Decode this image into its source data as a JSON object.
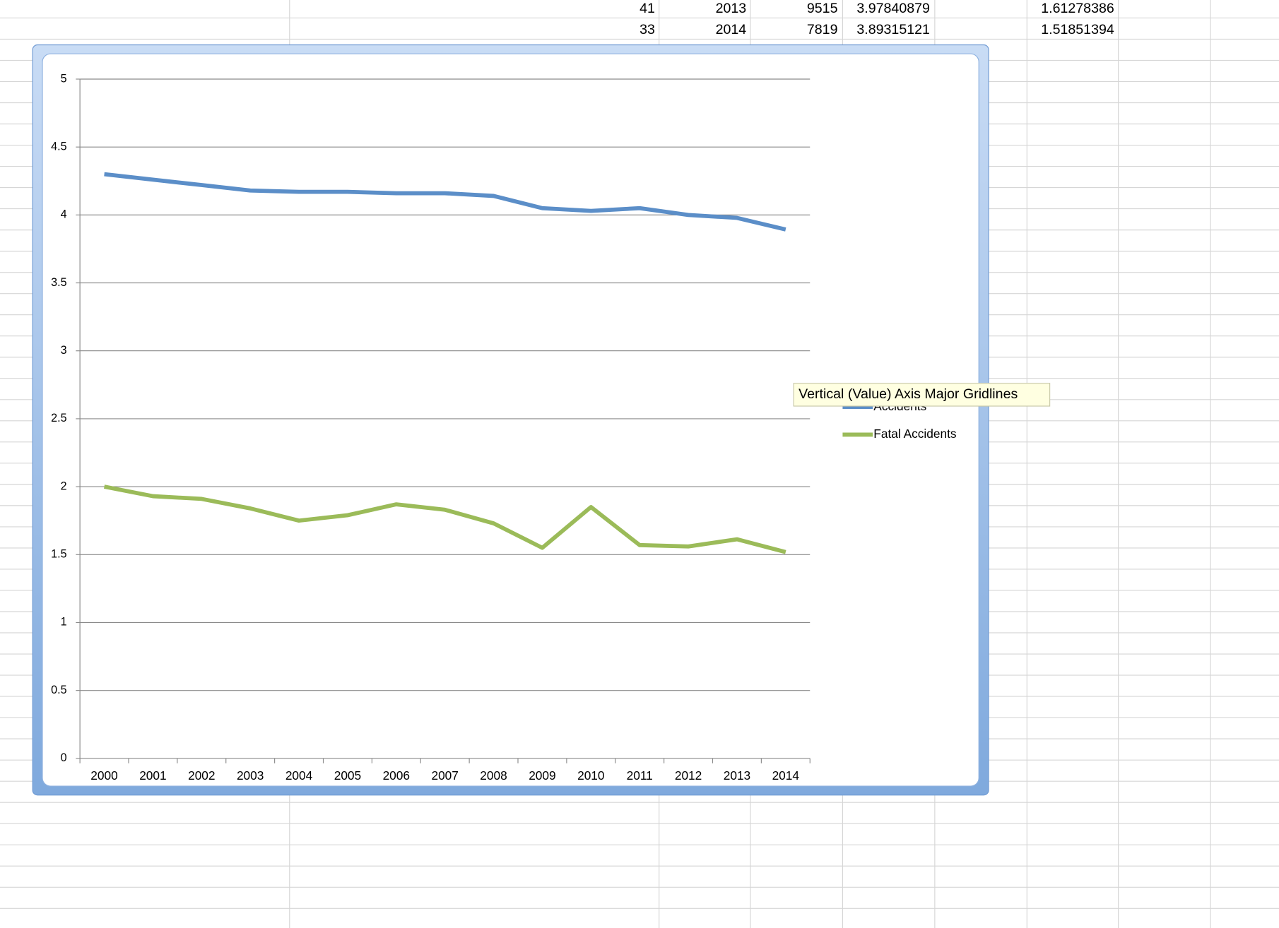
{
  "spreadsheet": {
    "rows": [
      [
        41,
        2013,
        9515,
        3.97840879,
        1.61278386
      ],
      [
        33,
        2014,
        7819,
        3.89315121,
        1.51851394
      ]
    ]
  },
  "tooltip": "Vertical (Value) Axis Major Gridlines",
  "chart_data": {
    "type": "line",
    "categories": [
      "2000",
      "2001",
      "2002",
      "2003",
      "2004",
      "2005",
      "2006",
      "2007",
      "2008",
      "2009",
      "2010",
      "2011",
      "2012",
      "2013",
      "2014"
    ],
    "series": [
      {
        "name": "Accidents",
        "color": "#5b8ec8",
        "values": [
          4.3,
          4.26,
          4.22,
          4.18,
          4.17,
          4.17,
          4.16,
          4.16,
          4.14,
          4.05,
          4.03,
          4.05,
          4.0,
          3.97840879,
          3.89315121
        ]
      },
      {
        "name": "Fatal Accidents",
        "color": "#9bbb59",
        "values": [
          2.0,
          1.93,
          1.91,
          1.84,
          1.75,
          1.79,
          1.87,
          1.83,
          1.73,
          1.55,
          1.85,
          1.57,
          1.56,
          1.61278386,
          1.51851394
        ]
      }
    ],
    "ylim": [
      0,
      5
    ],
    "yticks": [
      0,
      0.5,
      1,
      1.5,
      2,
      2.5,
      3,
      3.5,
      4,
      4.5,
      5
    ],
    "grid": true
  }
}
